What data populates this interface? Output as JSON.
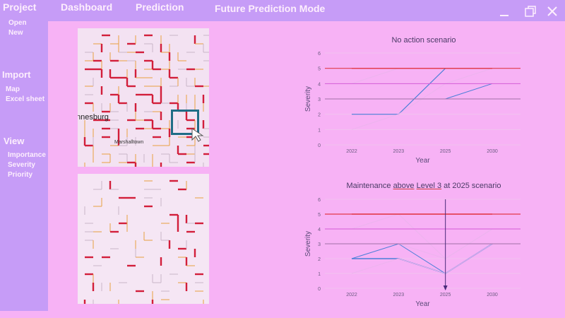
{
  "menu": {
    "project": "Project",
    "dashboard": "Dashboard",
    "prediction": "Prediction",
    "mode_title": "Future Prediction Mode"
  },
  "sidebar": {
    "project_items": [
      "Open",
      "New"
    ],
    "import_heading": "Import",
    "import_items": [
      "Map",
      "Excel sheet"
    ],
    "view_heading": "View",
    "view_items": [
      "Importance",
      "Severity",
      "Priority"
    ]
  },
  "map": {
    "city_label": "nnesburg",
    "district_label": "Marshalltown"
  },
  "colors": {
    "level5": "#e23a4a",
    "level4": "#d45ad8",
    "level3": "#7a5aa0",
    "series_blue": "#4a7fd8"
  },
  "chart_data": [
    {
      "type": "line",
      "title": "No action scenario",
      "xlabel": "Year",
      "ylabel": "Severity",
      "categories": [
        "2022",
        "2023",
        "2025",
        "2030"
      ],
      "ylim": [
        0,
        6
      ],
      "yticks": [
        0,
        1,
        2,
        3,
        4,
        5,
        6
      ],
      "grid": true,
      "series": [
        {
          "values": [
            2,
            2,
            5,
            5
          ],
          "color": "#4a7fd8",
          "width": 1.2
        },
        {
          "values": [
            3,
            3,
            3,
            4
          ],
          "color": "#4a7fd8",
          "width": 1.0
        },
        {
          "values": [
            1,
            2,
            4,
            5
          ],
          "color": "#ecb4ee",
          "width": 1.0
        },
        {
          "values": [
            4,
            5,
            5,
            5
          ],
          "color": "#ecb4ee",
          "width": 1.0
        },
        {
          "values": [
            5,
            5,
            5,
            5
          ],
          "color": "#e23a4a",
          "width": 1.4
        }
      ]
    },
    {
      "type": "line",
      "title": "Maintenance above Level 3 at 2025 scenario",
      "title_parts": [
        "Maintenance ",
        "above",
        " ",
        "Level 3",
        " at 2025 scenario"
      ],
      "xlabel": "Year",
      "ylabel": "Severity",
      "categories": [
        "2022",
        "2023",
        "2025",
        "2030"
      ],
      "ylim": [
        0,
        6
      ],
      "yticks": [
        0,
        1,
        2,
        3,
        4,
        5,
        6
      ],
      "grid": true,
      "annotation": {
        "type": "arrow",
        "at": "2025"
      },
      "series": [
        {
          "values": [
            2,
            2,
            1,
            3
          ],
          "color": "#4a7fd8",
          "width": 1.4
        },
        {
          "values": [
            2,
            3,
            1,
            3
          ],
          "color": "#4a7fd8",
          "width": 1.0
        },
        {
          "values": [
            3,
            3,
            2,
            4
          ],
          "color": "#ecb4ee",
          "width": 1.0
        },
        {
          "values": [
            1,
            2,
            1,
            3
          ],
          "color": "#ecb4ee",
          "width": 1.0
        },
        {
          "values": [
            4,
            5,
            2,
            4
          ],
          "color": "#ecb4ee",
          "width": 1.0
        },
        {
          "values": [
            5,
            5,
            5,
            5
          ],
          "color": "#e23a4a",
          "width": 1.4
        }
      ]
    }
  ]
}
